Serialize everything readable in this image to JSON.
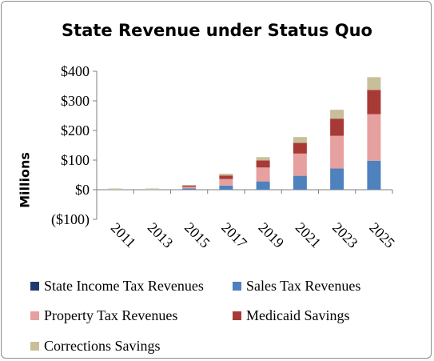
{
  "chart_data": {
    "type": "bar",
    "stacked": true,
    "title": "State Revenue under Status Quo",
    "xlabel": "",
    "ylabel": "Millions",
    "categories": [
      "2011",
      "2013",
      "2015",
      "2017",
      "2019",
      "2021",
      "2023",
      "2025"
    ],
    "ylim": [
      -100,
      400
    ],
    "yticks": [
      -100,
      0,
      100,
      200,
      300,
      400
    ],
    "ytick_labels": [
      "($100)",
      "$0",
      "$100",
      "$200",
      "$300",
      "$400"
    ],
    "grid": false,
    "legend_position": "bottom",
    "series": [
      {
        "name": "State Income Tax Revenues",
        "color": "#1f3a6e",
        "values": [
          0,
          0,
          0,
          0,
          0,
          0,
          0,
          0
        ]
      },
      {
        "name": "Sales Tax Revenues",
        "color": "#4f81bd",
        "values": [
          1,
          1,
          4,
          14,
          28,
          47,
          72,
          98
        ]
      },
      {
        "name": "Property Tax Revenues",
        "color": "#e6a0a0",
        "values": [
          1,
          1,
          6,
          22,
          47,
          75,
          110,
          157
        ]
      },
      {
        "name": "Medicaid Savings",
        "color": "#a83a36",
        "values": [
          0,
          0,
          4,
          12,
          24,
          36,
          58,
          82
        ]
      },
      {
        "name": "Corrections Savings",
        "color": "#c8bf9a",
        "values": [
          0,
          0,
          2,
          6,
          11,
          20,
          30,
          43
        ]
      }
    ]
  }
}
